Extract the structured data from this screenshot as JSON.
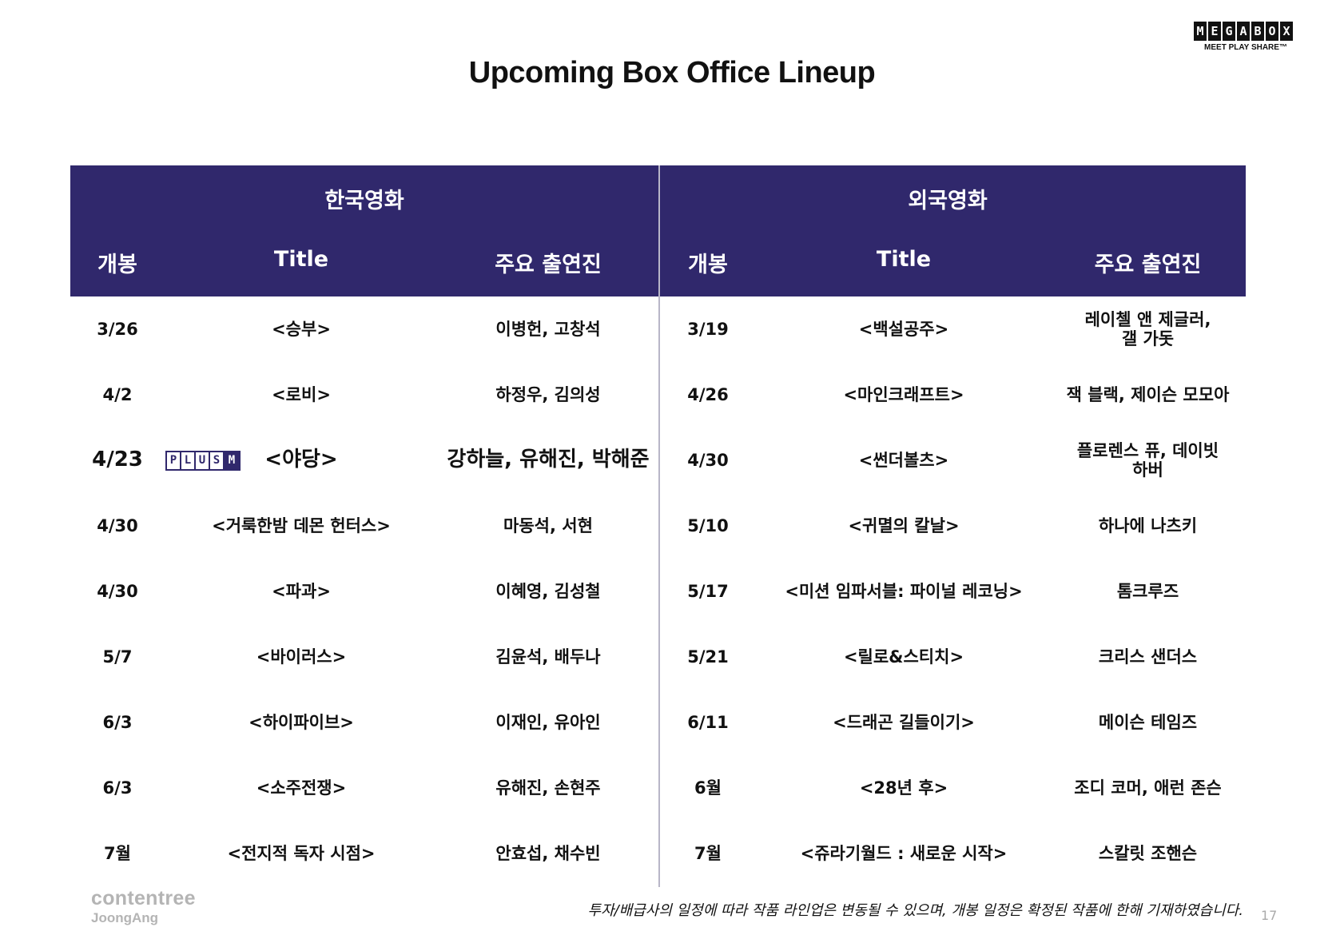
{
  "title": "Upcoming Box Office Lineup",
  "logo": {
    "letters": [
      "M",
      "E",
      "G",
      "A",
      "B",
      "O",
      "X"
    ],
    "tagline": "MEET PLAY SHARE™"
  },
  "header": {
    "korean": "한국영화",
    "foreign": "외국영화",
    "date": "개봉",
    "title": "Title",
    "cast": "주요 출연진"
  },
  "korean_rows": [
    {
      "date": "3/26",
      "title": "<승부>",
      "cast": "이병헌, 고창석"
    },
    {
      "date": "4/2",
      "title": "<로비>",
      "cast": "하정우, 김의성"
    },
    {
      "date": "4/23",
      "title": "<야당>",
      "cast": "강하늘, 유해진, 박해준",
      "badge": [
        "P",
        "L",
        "U",
        "S",
        "M"
      ]
    },
    {
      "date": "4/30",
      "title": "<거룩한밤 데몬 헌터스>",
      "cast": "마동석, 서현"
    },
    {
      "date": "4/30",
      "title": "<파과>",
      "cast": "이혜영, 김성철"
    },
    {
      "date": "5/7",
      "title": "<바이러스>",
      "cast": "김윤석, 배두나"
    },
    {
      "date": "6/3",
      "title": "<하이파이브>",
      "cast": "이재인, 유아인"
    },
    {
      "date": "6/3",
      "title": "<소주전쟁>",
      "cast": "유해진, 손현주"
    },
    {
      "date": "7월",
      "title": "<전지적 독자 시점>",
      "cast": "안효섭, 채수빈"
    }
  ],
  "foreign_rows": [
    {
      "date": "3/19",
      "title": "<백설공주>",
      "cast": "레이첼 앤 제글러,\n갤 가돗"
    },
    {
      "date": "4/26",
      "title": "<마인크래프트>",
      "cast": "잭 블랙, 제이슨 모모아"
    },
    {
      "date": "4/30",
      "title": "<썬더볼츠>",
      "cast": "플로렌스 퓨, 데이빗\n하버"
    },
    {
      "date": "5/10",
      "title": "<귀멸의 칼날>",
      "cast": "하나에 나츠키"
    },
    {
      "date": "5/17",
      "title": "<미션 임파서블: 파이널 레코닝>",
      "cast": "톰크루즈"
    },
    {
      "date": "5/21",
      "title": "<릴로&스티치>",
      "cast": "크리스 샌더스"
    },
    {
      "date": "6/11",
      "title": "<드래곤 길들이기>",
      "cast": "메이슨 테임즈"
    },
    {
      "date": "6월",
      "title": "<28년 후>",
      "cast": "조디 코머, 애런 존슨"
    },
    {
      "date": "7월",
      "title": "<쥬라기월드 : 새로운 시작>",
      "cast": "스칼릿 조핸슨"
    }
  ],
  "footer": {
    "brand": "contentree",
    "brand_sub": "JoongAng",
    "note": "투자/배급사의 일정에 따라 작품 라인업은 변동될 수 있으며, 개봉 일정은 확정된 작품에 한해 기재하였습니다.",
    "page": "17"
  },
  "colors": {
    "header_bg": "#30286c"
  }
}
